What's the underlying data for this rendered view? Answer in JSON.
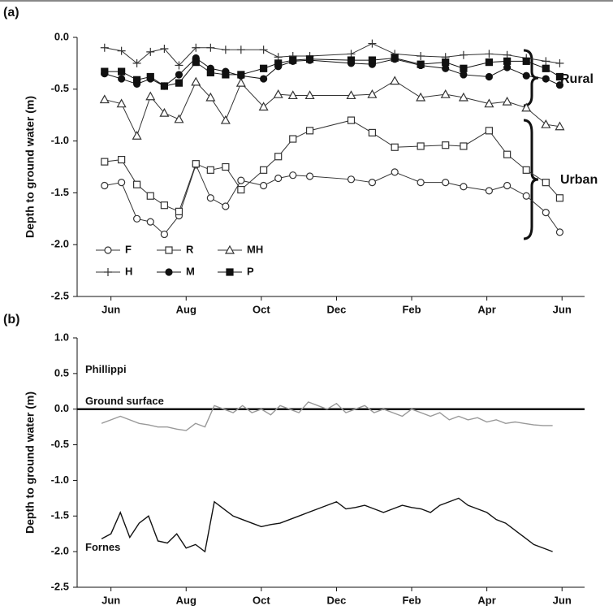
{
  "chart_data": [
    {
      "type": "line",
      "panel_label": "(a)",
      "y_label": "Depth to ground water (m)",
      "xlim": [
        -0.9,
        12.6
      ],
      "xticks": [
        {
          "value": 0,
          "label": "Jun"
        },
        {
          "value": 2,
          "label": "Aug"
        },
        {
          "value": 4,
          "label": "Oct"
        },
        {
          "value": 6,
          "label": "Dec"
        },
        {
          "value": 8,
          "label": "Feb"
        },
        {
          "value": 10,
          "label": "Apr"
        },
        {
          "value": 12,
          "label": "Jun"
        }
      ],
      "ylim": [
        -2.5,
        0.0
      ],
      "yticks": [
        {
          "value": 0,
          "label": "0.0"
        },
        {
          "value": -0.5,
          "label": "-0.5"
        },
        {
          "value": -1,
          "label": "-1.0"
        },
        {
          "value": -1.5,
          "label": "-1.5"
        },
        {
          "value": -2,
          "label": "-2.0"
        },
        {
          "value": -2.5,
          "label": "-2.5"
        }
      ],
      "x": [
        -0.17,
        0.28,
        0.69,
        1.05,
        1.42,
        1.81,
        2.26,
        2.65,
        3.05,
        3.46,
        4.06,
        4.45,
        4.84,
        5.29,
        6.39,
        6.95,
        7.55,
        8.24,
        8.9,
        9.38,
        10.06,
        10.54,
        11.05,
        11.57,
        11.94
      ],
      "series": [
        {
          "name": "F",
          "marker": "open-circle",
          "color": "#333",
          "values": [
            -1.43,
            -1.4,
            -1.75,
            -1.78,
            -1.9,
            -1.72,
            -1.23,
            -1.55,
            -1.63,
            -1.38,
            -1.43,
            -1.36,
            -1.33,
            -1.34,
            -1.37,
            -1.4,
            -1.3,
            -1.4,
            -1.4,
            -1.44,
            -1.48,
            -1.43,
            -1.53,
            -1.69,
            -1.88
          ]
        },
        {
          "name": "R",
          "marker": "open-square",
          "color": "#333",
          "values": [
            -1.2,
            -1.18,
            -1.42,
            -1.53,
            -1.62,
            -1.68,
            -1.22,
            -1.28,
            -1.25,
            -1.47,
            -1.28,
            -1.15,
            -0.98,
            -0.9,
            -0.8,
            -0.92,
            -1.06,
            -1.05,
            -1.04,
            -1.05,
            -0.9,
            -1.13,
            -1.28,
            -1.4,
            -1.55
          ]
        },
        {
          "name": "MH",
          "marker": "open-triangle",
          "color": "#333",
          "values": [
            -0.6,
            -0.64,
            -0.95,
            -0.57,
            -0.73,
            -0.79,
            -0.43,
            -0.58,
            -0.8,
            -0.44,
            -0.67,
            -0.55,
            -0.56,
            -0.56,
            -0.56,
            -0.55,
            -0.42,
            -0.58,
            -0.55,
            -0.58,
            -0.64,
            -0.62,
            -0.68,
            -0.84,
            -0.86
          ]
        },
        {
          "name": "H",
          "marker": "plus",
          "color": "#333",
          "values": [
            -0.1,
            -0.13,
            -0.25,
            -0.14,
            -0.11,
            -0.27,
            -0.1,
            -0.1,
            -0.12,
            -0.12,
            -0.12,
            -0.19,
            -0.18,
            -0.18,
            -0.16,
            -0.06,
            -0.16,
            -0.18,
            -0.19,
            -0.17,
            -0.16,
            -0.17,
            -0.2,
            -0.23,
            -0.25
          ]
        },
        {
          "name": "M",
          "marker": "filled-circle",
          "color": "#111",
          "values": [
            -0.35,
            -0.4,
            -0.45,
            -0.4,
            -0.47,
            -0.36,
            -0.2,
            -0.3,
            -0.33,
            -0.37,
            -0.4,
            -0.28,
            -0.23,
            -0.22,
            -0.25,
            -0.26,
            -0.21,
            -0.27,
            -0.3,
            -0.36,
            -0.38,
            -0.29,
            -0.37,
            -0.4,
            -0.46
          ]
        },
        {
          "name": "P",
          "marker": "filled-square",
          "color": "#111",
          "values": [
            -0.33,
            -0.33,
            -0.41,
            -0.38,
            -0.47,
            -0.44,
            -0.24,
            -0.34,
            -0.36,
            -0.36,
            -0.3,
            -0.25,
            -0.22,
            -0.21,
            -0.22,
            -0.22,
            -0.2,
            -0.26,
            -0.24,
            -0.3,
            -0.24,
            -0.23,
            -0.23,
            -0.3,
            -0.38
          ]
        }
      ],
      "annotations": [
        "Rural",
        "Urban"
      ]
    },
    {
      "type": "line",
      "panel_label": "(b)",
      "y_label": "Depth to ground water (m)",
      "xlim": [
        -0.9,
        12.6
      ],
      "xticks": [
        {
          "value": 0,
          "label": "Jun"
        },
        {
          "value": 2,
          "label": "Aug"
        },
        {
          "value": 4,
          "label": "Oct"
        },
        {
          "value": 6,
          "label": "Dec"
        },
        {
          "value": 8,
          "label": "Feb"
        },
        {
          "value": 10,
          "label": "Apr"
        },
        {
          "value": 12,
          "label": "Jun"
        }
      ],
      "ylim": [
        -2.5,
        1.0
      ],
      "yticks": [
        {
          "value": 1,
          "label": "1.0"
        },
        {
          "value": 0.5,
          "label": "0.5"
        },
        {
          "value": 0,
          "label": "0.0"
        },
        {
          "value": -0.5,
          "label": "-0.5"
        },
        {
          "value": -1,
          "label": "-1.0"
        },
        {
          "value": -1.5,
          "label": "-1.5"
        },
        {
          "value": -2,
          "label": "-2.0"
        },
        {
          "value": -2.5,
          "label": "-2.5"
        }
      ],
      "reference_line": {
        "label": "Ground surface",
        "value": 0
      },
      "x": [
        -0.25,
        0,
        0.25,
        0.5,
        0.75,
        1,
        1.25,
        1.5,
        1.75,
        2,
        2.25,
        2.5,
        2.75,
        3,
        3.25,
        3.5,
        3.75,
        4,
        4.25,
        4.5,
        4.75,
        5,
        5.25,
        5.5,
        5.75,
        6,
        6.25,
        6.5,
        6.75,
        7,
        7.25,
        7.5,
        7.75,
        8,
        8.25,
        8.5,
        8.75,
        9,
        9.25,
        9.5,
        9.75,
        10,
        10.25,
        10.5,
        10.75,
        11,
        11.25,
        11.5,
        11.75
      ],
      "series": [
        {
          "name": "Phillippi",
          "color": "#999",
          "values": [
            -0.2,
            -0.15,
            -0.1,
            -0.15,
            -0.2,
            -0.22,
            -0.25,
            -0.25,
            -0.28,
            -0.3,
            -0.2,
            -0.25,
            0.05,
            0.0,
            -0.05,
            0.05,
            -0.05,
            0.0,
            -0.08,
            0.05,
            0.0,
            -0.05,
            0.1,
            0.05,
            0.0,
            0.08,
            -0.05,
            0.0,
            0.05,
            -0.05,
            0.0,
            -0.05,
            -0.1,
            0.0,
            -0.05,
            -0.1,
            -0.05,
            -0.15,
            -0.1,
            -0.15,
            -0.12,
            -0.18,
            -0.15,
            -0.2,
            -0.18,
            -0.2,
            -0.22,
            -0.23,
            -0.23
          ]
        },
        {
          "name": "Fornes",
          "color": "#111",
          "values": [
            -1.82,
            -1.75,
            -1.45,
            -1.8,
            -1.6,
            -1.5,
            -1.85,
            -1.88,
            -1.75,
            -1.95,
            -1.9,
            -2.0,
            -1.3,
            -1.4,
            -1.5,
            -1.55,
            -1.6,
            -1.65,
            -1.62,
            -1.6,
            -1.55,
            -1.5,
            -1.45,
            -1.4,
            -1.35,
            -1.3,
            -1.4,
            -1.38,
            -1.35,
            -1.4,
            -1.45,
            -1.4,
            -1.35,
            -1.38,
            -1.4,
            -1.45,
            -1.35,
            -1.3,
            -1.25,
            -1.35,
            -1.4,
            -1.45,
            -1.55,
            -1.6,
            -1.7,
            -1.8,
            -1.9,
            -1.95,
            -2.0
          ]
        }
      ]
    }
  ]
}
